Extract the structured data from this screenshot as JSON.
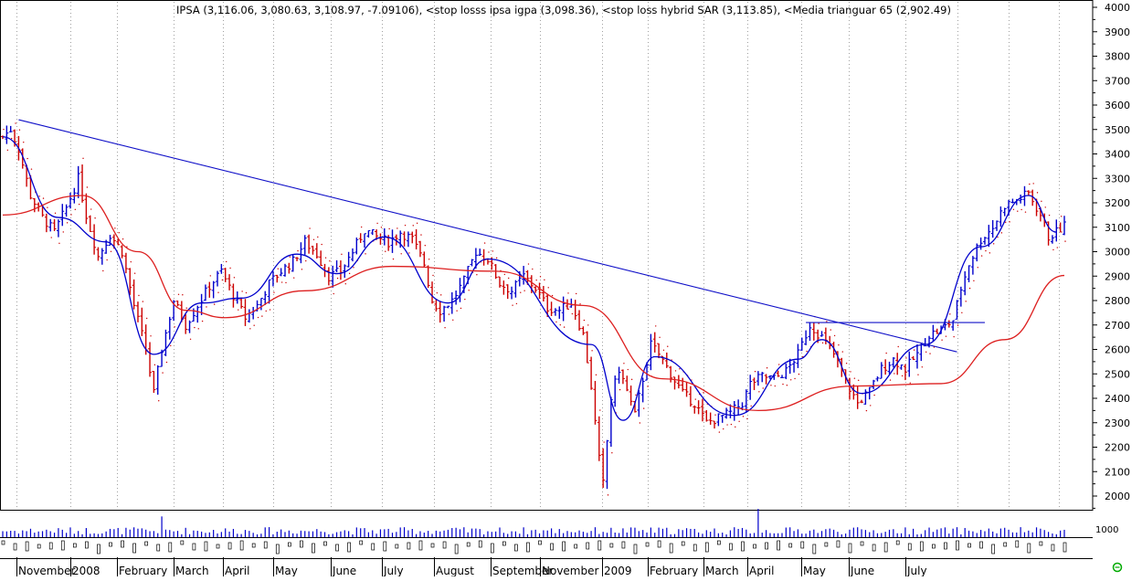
{
  "title": "IPSA (3,116.06, 3,080.63, 3,108.97, -7.09106), <stop losss ipsa igpa (3,098.36), <stop loss hybrid SAR (3,113.85), <Media trianguar 65 (2,902.49)",
  "colors": {
    "background": "#ffffff",
    "up_bar": "#0000cc",
    "down_bar": "#cc0000",
    "trendline": "#1010c8",
    "fast_average": "#0000cc",
    "slow_average": "#dd2020",
    "volume": "#0000cc",
    "grid": "#a0a0a0"
  },
  "icons": {
    "status": "green-circle-icon"
  },
  "chart_data": {
    "type": "candlestick-bar",
    "title": "IPSA (3,116.06, 3,080.63, 3,108.97, -7.09106), <stop losss ipsa igpa (3,098.36), <stop loss hybrid SAR (3,113.85), <Media trianguar 65 (2,902.49)",
    "xlabel": "",
    "ylabel": "",
    "ylim": [
      1950,
      4020
    ],
    "y_ticks": [
      2000,
      2100,
      2200,
      2300,
      2400,
      2500,
      2600,
      2700,
      2800,
      2900,
      3000,
      3100,
      3200,
      3300,
      3400,
      3500,
      3600,
      3700,
      3800,
      3900,
      4000
    ],
    "volume_tick": "1000",
    "x_labels": [
      "November",
      "2008",
      "February",
      "March",
      "April",
      "May",
      "June",
      "July",
      "August",
      "September",
      "November",
      "2009",
      "February",
      "March",
      "April",
      "May",
      "June",
      "July"
    ],
    "grid": true,
    "legend": "none",
    "price_path": [
      {
        "t": 0,
        "v": 3470
      },
      {
        "t": 2,
        "v": 3500
      },
      {
        "t": 4,
        "v": 3420
      },
      {
        "t": 7,
        "v": 3230
      },
      {
        "t": 10,
        "v": 3140
      },
      {
        "t": 13,
        "v": 3080
      },
      {
        "t": 16,
        "v": 3180
      },
      {
        "t": 19,
        "v": 3300
      },
      {
        "t": 21,
        "v": 3150
      },
      {
        "t": 24,
        "v": 2980
      },
      {
        "t": 27,
        "v": 3070
      },
      {
        "t": 30,
        "v": 3000
      },
      {
        "t": 33,
        "v": 2780
      },
      {
        "t": 36,
        "v": 2600
      },
      {
        "t": 38,
        "v": 2420
      },
      {
        "t": 40,
        "v": 2600
      },
      {
        "t": 43,
        "v": 2800
      },
      {
        "t": 46,
        "v": 2700
      },
      {
        "t": 49,
        "v": 2780
      },
      {
        "t": 52,
        "v": 2860
      },
      {
        "t": 55,
        "v": 2920
      },
      {
        "t": 58,
        "v": 2820
      },
      {
        "t": 61,
        "v": 2730
      },
      {
        "t": 64,
        "v": 2780
      },
      {
        "t": 67,
        "v": 2870
      },
      {
        "t": 70,
        "v": 2920
      },
      {
        "t": 73,
        "v": 2960
      },
      {
        "t": 76,
        "v": 3040
      },
      {
        "t": 79,
        "v": 2990
      },
      {
        "t": 82,
        "v": 2900
      },
      {
        "t": 85,
        "v": 2920
      },
      {
        "t": 88,
        "v": 3000
      },
      {
        "t": 91,
        "v": 3090
      },
      {
        "t": 94,
        "v": 3060
      },
      {
        "t": 97,
        "v": 3040
      },
      {
        "t": 100,
        "v": 3080
      },
      {
        "t": 103,
        "v": 3050
      },
      {
        "t": 106,
        "v": 2950
      },
      {
        "t": 108,
        "v": 2800
      },
      {
        "t": 110,
        "v": 2760
      },
      {
        "t": 113,
        "v": 2800
      },
      {
        "t": 116,
        "v": 2880
      },
      {
        "t": 119,
        "v": 3000
      },
      {
        "t": 122,
        "v": 2970
      },
      {
        "t": 125,
        "v": 2870
      },
      {
        "t": 128,
        "v": 2840
      },
      {
        "t": 131,
        "v": 2900
      },
      {
        "t": 134,
        "v": 2850
      },
      {
        "t": 137,
        "v": 2770
      },
      {
        "t": 140,
        "v": 2760
      },
      {
        "t": 143,
        "v": 2790
      },
      {
        "t": 146,
        "v": 2660
      },
      {
        "t": 148,
        "v": 2450
      },
      {
        "t": 150,
        "v": 2150
      },
      {
        "t": 151,
        "v": 2050
      },
      {
        "t": 153,
        "v": 2400
      },
      {
        "t": 155,
        "v": 2520
      },
      {
        "t": 157,
        "v": 2430
      },
      {
        "t": 159,
        "v": 2330
      },
      {
        "t": 161,
        "v": 2480
      },
      {
        "t": 163,
        "v": 2620
      },
      {
        "t": 165,
        "v": 2580
      },
      {
        "t": 168,
        "v": 2500
      },
      {
        "t": 171,
        "v": 2420
      },
      {
        "t": 174,
        "v": 2380
      },
      {
        "t": 177,
        "v": 2300
      },
      {
        "t": 180,
        "v": 2320
      },
      {
        "t": 183,
        "v": 2340
      },
      {
        "t": 186,
        "v": 2380
      },
      {
        "t": 188,
        "v": 2460
      },
      {
        "t": 191,
        "v": 2490
      },
      {
        "t": 194,
        "v": 2480
      },
      {
        "t": 197,
        "v": 2510
      },
      {
        "t": 200,
        "v": 2580
      },
      {
        "t": 203,
        "v": 2700
      },
      {
        "t": 206,
        "v": 2650
      },
      {
        "t": 209,
        "v": 2580
      },
      {
        "t": 212,
        "v": 2470
      },
      {
        "t": 215,
        "v": 2380
      },
      {
        "t": 218,
        "v": 2430
      },
      {
        "t": 221,
        "v": 2520
      },
      {
        "t": 224,
        "v": 2560
      },
      {
        "t": 227,
        "v": 2520
      },
      {
        "t": 230,
        "v": 2580
      },
      {
        "t": 233,
        "v": 2660
      },
      {
        "t": 236,
        "v": 2680
      },
      {
        "t": 239,
        "v": 2720
      },
      {
        "t": 241,
        "v": 2850
      },
      {
        "t": 243,
        "v": 2950
      },
      {
        "t": 246,
        "v": 3050
      },
      {
        "t": 249,
        "v": 3100
      },
      {
        "t": 252,
        "v": 3190
      },
      {
        "t": 255,
        "v": 3210
      },
      {
        "t": 258,
        "v": 3240
      },
      {
        "t": 261,
        "v": 3150
      },
      {
        "t": 263,
        "v": 3060
      },
      {
        "t": 265,
        "v": 3080
      },
      {
        "t": 267,
        "v": 3108.97
      }
    ],
    "series": [
      {
        "values": [
          {
            "t": 0,
            "v": 3470
          },
          {
            "t": 14,
            "v": 3140
          },
          {
            "t": 26,
            "v": 3040
          },
          {
            "t": 38,
            "v": 2580
          },
          {
            "t": 50,
            "v": 2790
          },
          {
            "t": 60,
            "v": 2810
          },
          {
            "t": 74,
            "v": 2990
          },
          {
            "t": 84,
            "v": 2910
          },
          {
            "t": 96,
            "v": 3060
          },
          {
            "t": 112,
            "v": 2790
          },
          {
            "t": 122,
            "v": 2970
          },
          {
            "t": 148,
            "v": 2620
          },
          {
            "t": 156,
            "v": 2310
          },
          {
            "t": 164,
            "v": 2570
          },
          {
            "t": 184,
            "v": 2330
          },
          {
            "t": 200,
            "v": 2560
          },
          {
            "t": 206,
            "v": 2640
          },
          {
            "t": 216,
            "v": 2420
          },
          {
            "t": 232,
            "v": 2620
          },
          {
            "t": 246,
            "v": 3020
          },
          {
            "t": 258,
            "v": 3230
          },
          {
            "t": 265,
            "v": 3080
          }
        ]
      },
      {
        "values": [
          {
            "t": 0,
            "v": 3150
          },
          {
            "t": 20,
            "v": 3230
          },
          {
            "t": 34,
            "v": 3000
          },
          {
            "t": 46,
            "v": 2760
          },
          {
            "t": 56,
            "v": 2730
          },
          {
            "t": 76,
            "v": 2840
          },
          {
            "t": 98,
            "v": 2940
          },
          {
            "t": 124,
            "v": 2920
          },
          {
            "t": 146,
            "v": 2780
          },
          {
            "t": 166,
            "v": 2480
          },
          {
            "t": 190,
            "v": 2350
          },
          {
            "t": 214,
            "v": 2450
          },
          {
            "t": 236,
            "v": 2460
          },
          {
            "t": 252,
            "v": 2640
          },
          {
            "t": 267,
            "v": 2902.49
          }
        ]
      }
    ],
    "trendlines": [
      {
        "from": {
          "t": 4,
          "v": 3540
        },
        "to": {
          "t": 240,
          "v": 2590
        }
      },
      {
        "from": {
          "t": 202,
          "v": 2710
        },
        "to": {
          "t": 247,
          "v": 2710
        }
      }
    ]
  }
}
